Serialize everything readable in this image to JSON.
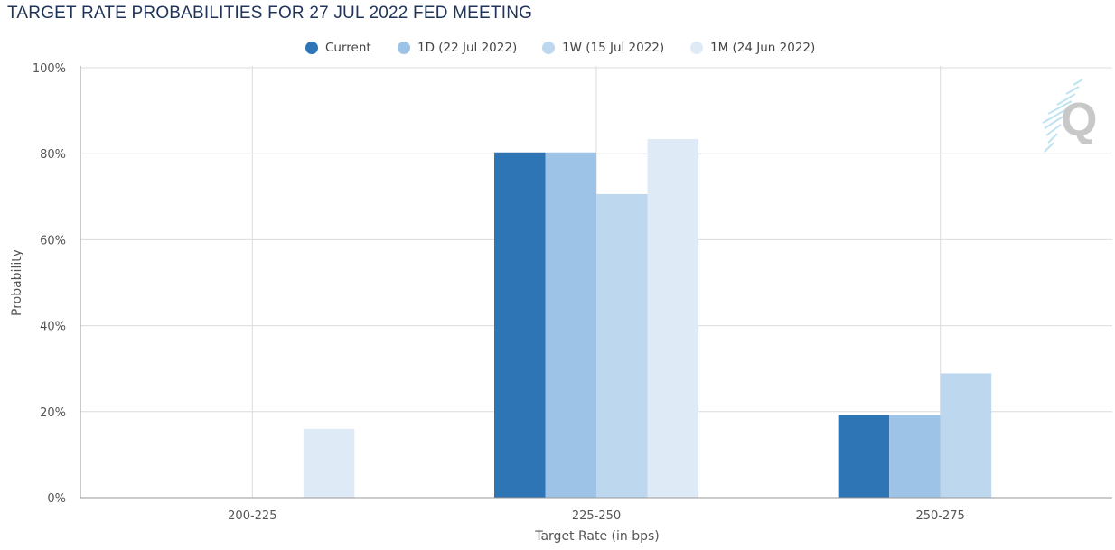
{
  "page_title": "TARGET RATE PROBABILITIES FOR 27 JUL 2022 FED MEETING",
  "chart_data": {
    "type": "bar",
    "xlabel": "Target Rate (in bps)",
    "ylabel": "Probability",
    "categories": [
      "200-225",
      "225-250",
      "250-275"
    ],
    "ylim": [
      0,
      100
    ],
    "yticks": [
      "0%",
      "20%",
      "40%",
      "60%",
      "80%",
      "100%"
    ],
    "grid": true,
    "legend_position": "top",
    "series": [
      {
        "name": "Current",
        "color": "#2e75b6",
        "values": [
          0,
          80.3,
          19.2
        ]
      },
      {
        "name": "1D (22 Jul 2022)",
        "color": "#9dc3e6",
        "values": [
          0,
          80.3,
          19.2
        ]
      },
      {
        "name": "1W (15 Jul 2022)",
        "color": "#bdd7ee",
        "values": [
          0,
          70.6,
          28.9
        ]
      },
      {
        "name": "1M (24 Jun 2022)",
        "color": "#deebf7",
        "values": [
          16.0,
          83.4,
          0
        ]
      }
    ]
  },
  "watermark": {
    "icon": "q-logo-icon"
  }
}
